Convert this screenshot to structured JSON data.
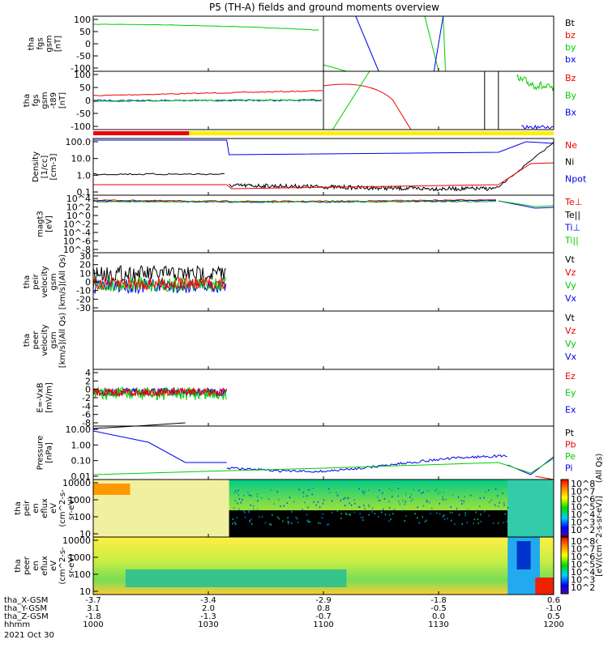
{
  "title": "P5 (TH-A) fields and ground moments overview",
  "colors": {
    "black": "#000000",
    "red": "#ee0000",
    "green": "#00cc00",
    "blue": "#0000ee",
    "yellow": "#ffee00"
  },
  "footer": {
    "rows": [
      {
        "label": "tha_X-GSM",
        "values": [
          "-3.7",
          "-3.4",
          "-2.9",
          "-1.8",
          "0.6"
        ]
      },
      {
        "label": "tha_Y-GSM",
        "values": [
          "3.1",
          "2.0",
          "0.8",
          "-0.5",
          "-1.0"
        ]
      },
      {
        "label": "tha_Z-GSM",
        "values": [
          "-1.8",
          "-1.3",
          "-0.7",
          "0.0",
          "0.5"
        ]
      },
      {
        "label": "hhmm",
        "values": [
          "1000",
          "1030",
          "1100",
          "1130",
          "1200"
        ]
      }
    ],
    "date": "2021 Oct 30"
  },
  "colorbar": {
    "label": "[eV/(cm^2-s-sr-eV)]",
    "label_upper": "(All Qs)",
    "ticks_top": [
      "10^8",
      "10^7",
      "10^6",
      "10^5",
      "10^4",
      "10^3",
      "10^2"
    ],
    "ticks_bottom": [
      "10^8",
      "10^7",
      "10^6",
      "10^5",
      "10^4",
      "10^3",
      "10^2"
    ]
  },
  "chart_data": [
    {
      "type": "line",
      "id": "fgs",
      "ylabel": [
        "tha",
        "fgs",
        "gsm",
        "[nT]"
      ],
      "yticks": [
        "100",
        "50",
        "0",
        "-50",
        "-100"
      ],
      "ylim": [
        -100,
        100
      ],
      "series": [
        {
          "name": "Bt",
          "color": "#000000"
        },
        {
          "name": "bz",
          "color": "#ee0000"
        },
        {
          "name": "by",
          "color": "#00cc00"
        },
        {
          "name": "bx",
          "color": "#0000ee"
        }
      ]
    },
    {
      "type": "line",
      "id": "fgs_t89",
      "ylabel": [
        "tha",
        "fgs",
        "gsm",
        "-t89",
        "[nT]"
      ],
      "yticks": [
        "100",
        "50",
        "0",
        "-50",
        "-100"
      ],
      "ylim": [
        -120,
        120
      ],
      "series": [
        {
          "name": "Bz",
          "color": "#ee0000"
        },
        {
          "name": "By",
          "color": "#00cc00"
        },
        {
          "name": "Bx",
          "color": "#0000ee"
        }
      ]
    },
    {
      "type": "bar",
      "id": "mode_bar",
      "segments": [
        {
          "color": "#ee0000",
          "from_hhmm": "1000",
          "to_hhmm": "1025"
        },
        {
          "color": "#ffee00",
          "from_hhmm": "1025",
          "to_hhmm": "1200"
        }
      ]
    },
    {
      "type": "line",
      "id": "density",
      "ylabel": [
        "Density",
        "[1/cc]",
        "[cm-3]"
      ],
      "yticks": [
        "100.0",
        "10.0",
        "1.0",
        "0.1"
      ],
      "yscale": "log",
      "series": [
        {
          "name": "Ne",
          "color": "#ee0000"
        },
        {
          "name": "Ni",
          "color": "#000000"
        },
        {
          "name": "Npot",
          "color": "#0000ee"
        }
      ]
    },
    {
      "type": "line",
      "id": "temp",
      "ylabel": [
        "magt3",
        "[eV]"
      ],
      "yticks": [
        "10^4",
        "10^2",
        "10^0",
        "10^-2",
        "10^-4",
        "10^-6",
        "10^-8"
      ],
      "yscale": "log",
      "series": [
        {
          "name": "Te⊥",
          "color": "#ee0000"
        },
        {
          "name": "Te||",
          "color": "#000000"
        },
        {
          "name": "Ti⊥",
          "color": "#0000ee"
        },
        {
          "name": "Ti||",
          "color": "#00cc00"
        }
      ]
    },
    {
      "type": "line",
      "id": "peir_vel",
      "ylabel": [
        "tha",
        "peir",
        "velocity",
        "gsm",
        "[km/s](All Qs)"
      ],
      "yticks": [
        "30",
        "20",
        "10",
        "0",
        "-10",
        "-20",
        "-30"
      ],
      "ylim": [
        -30,
        30
      ],
      "series": [
        {
          "name": "Vt",
          "color": "#000000"
        },
        {
          "name": "Vz",
          "color": "#ee0000"
        },
        {
          "name": "Vy",
          "color": "#00cc00"
        },
        {
          "name": "Vx",
          "color": "#0000ee"
        }
      ]
    },
    {
      "type": "line",
      "id": "peer_vel",
      "ylabel": [
        "tha",
        "peer",
        "velocity",
        "gsm",
        "[km/s](All Qs)"
      ],
      "yticks": [],
      "series": [
        {
          "name": "Vt",
          "color": "#000000"
        },
        {
          "name": "Vz",
          "color": "#ee0000"
        },
        {
          "name": "Vy",
          "color": "#00cc00"
        },
        {
          "name": "Vx",
          "color": "#0000ee"
        }
      ]
    },
    {
      "type": "line",
      "id": "efield",
      "ylabel": [
        "E=-VxB",
        "[mV/m]"
      ],
      "yticks": [
        "4",
        "2",
        "0",
        "-2",
        "-4",
        "-6",
        "-8"
      ],
      "ylim": [
        -8,
        4
      ],
      "series": [
        {
          "name": "Ez",
          "color": "#ee0000"
        },
        {
          "name": "Ey",
          "color": "#00cc00"
        },
        {
          "name": "Ex",
          "color": "#0000ee"
        }
      ]
    },
    {
      "type": "line",
      "id": "pressure",
      "ylabel": [
        "Pressure",
        "[nPa]"
      ],
      "yticks": [
        "10.00",
        "1.00",
        "0.10",
        "0.01"
      ],
      "yscale": "log",
      "series": [
        {
          "name": "Pt",
          "color": "#000000"
        },
        {
          "name": "Pb",
          "color": "#ee0000"
        },
        {
          "name": "Pe",
          "color": "#00cc00"
        },
        {
          "name": "Pi",
          "color": "#0000ee"
        }
      ]
    },
    {
      "type": "heatmap",
      "id": "peir_spec",
      "ylabel": [
        "tha",
        "peir",
        "en",
        "eflux",
        "eV",
        "(cm^2-s-",
        "sr-eV)"
      ],
      "yticks": [
        "10000",
        "1000",
        "100",
        "10"
      ],
      "yscale": "log"
    },
    {
      "type": "heatmap",
      "id": "peer_spec",
      "ylabel": [
        "tha",
        "peer",
        "en",
        "eflux",
        "eV",
        "(cm^2-s-",
        "sr-eV)"
      ],
      "yticks": [
        "10000",
        "1000",
        "100",
        "10"
      ],
      "yscale": "log"
    }
  ]
}
